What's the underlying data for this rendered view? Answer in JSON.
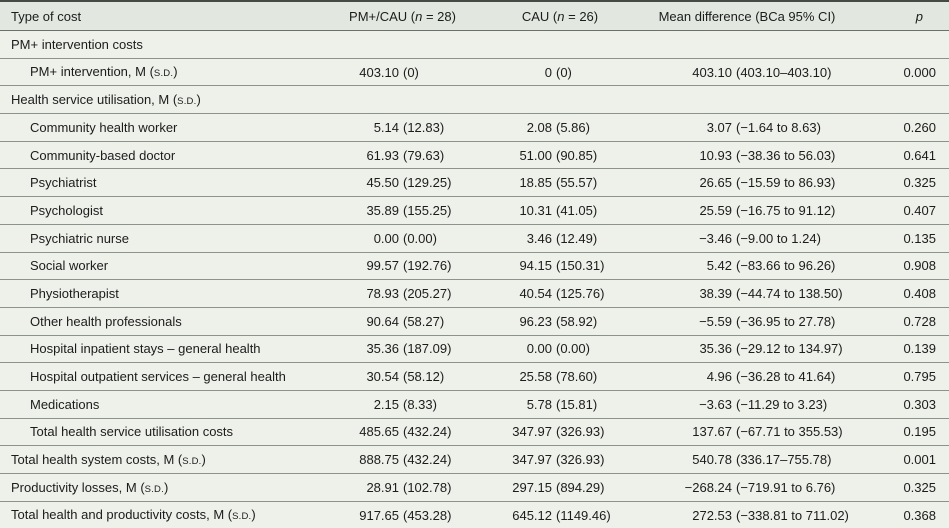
{
  "table": {
    "columns": [
      {
        "id": "type_of_cost",
        "label": "Type of cost"
      },
      {
        "id": "pm_cau",
        "label": "PM+/CAU (n = 28)"
      },
      {
        "id": "cau",
        "label": "CAU (n = 26)"
      },
      {
        "id": "mean_diff",
        "label": "Mean difference (BCa 95% CI)"
      },
      {
        "id": "p",
        "label": "p"
      }
    ],
    "rows": [
      {
        "kind": "section",
        "label": "PM+ intervention costs"
      },
      {
        "kind": "item",
        "indent": true,
        "label": "PM+ intervention, M (s.d.)",
        "pm_cau": "403.10 (0)",
        "cau": "0 (0)",
        "mean_diff": "403.10 (403.10–403.10)",
        "p": "0.000"
      },
      {
        "kind": "section",
        "label": "Health service utilisation, M (s.d.)"
      },
      {
        "kind": "item",
        "indent": true,
        "label": "Community health worker",
        "pm_cau": "5.14 (12.83)",
        "cau": "2.08 (5.86)",
        "mean_diff": "3.07 (−1.64 to 8.63)",
        "p": "0.260"
      },
      {
        "kind": "item",
        "indent": true,
        "label": "Community-based doctor",
        "pm_cau": "61.93 (79.63)",
        "cau": "51.00 (90.85)",
        "mean_diff": "10.93 (−38.36 to 56.03)",
        "p": "0.641"
      },
      {
        "kind": "item",
        "indent": true,
        "label": "Psychiatrist",
        "pm_cau": "45.50 (129.25)",
        "cau": "18.85 (55.57)",
        "mean_diff": "26.65 (−15.59 to 86.93)",
        "p": "0.325"
      },
      {
        "kind": "item",
        "indent": true,
        "label": "Psychologist",
        "pm_cau": "35.89 (155.25)",
        "cau": "10.31 (41.05)",
        "mean_diff": "25.59 (−16.75 to 91.12)",
        "p": "0.407"
      },
      {
        "kind": "item",
        "indent": true,
        "label": "Psychiatric nurse",
        "pm_cau": "0.00 (0.00)",
        "cau": "3.46 (12.49)",
        "mean_diff": "−3.46 (−9.00 to 1.24)",
        "p": "0.135"
      },
      {
        "kind": "item",
        "indent": true,
        "label": "Social worker",
        "pm_cau": "99.57 (192.76)",
        "cau": "94.15 (150.31)",
        "mean_diff": "5.42 (−83.66 to 96.26)",
        "p": "0.908"
      },
      {
        "kind": "item",
        "indent": true,
        "label": "Physiotherapist",
        "pm_cau": "78.93 (205.27)",
        "cau": "40.54 (125.76)",
        "mean_diff": "38.39 (−44.74 to 138.50)",
        "p": "0.408"
      },
      {
        "kind": "item",
        "indent": true,
        "label": "Other health professionals",
        "pm_cau": "90.64 (58.27)",
        "cau": "96.23 (58.92)",
        "mean_diff": "−5.59 (−36.95 to 27.78)",
        "p": "0.728"
      },
      {
        "kind": "item",
        "indent": true,
        "label": "Hospital inpatient stays – general health",
        "pm_cau": "35.36 (187.09)",
        "cau": "0.00 (0.00)",
        "mean_diff": "35.36 (−29.12 to 134.97)",
        "p": "0.139"
      },
      {
        "kind": "item",
        "indent": true,
        "label": "Hospital outpatient services – general health",
        "pm_cau": "30.54 (58.12)",
        "cau": "25.58 (78.60)",
        "mean_diff": "4.96 (−36.28 to 41.64)",
        "p": "0.795"
      },
      {
        "kind": "item",
        "indent": true,
        "label": "Medications",
        "pm_cau": "2.15 (8.33)",
        "cau": "5.78 (15.81)",
        "mean_diff": "−3.63 (−11.29 to 3.23)",
        "p": "0.303"
      },
      {
        "kind": "item",
        "indent": true,
        "label": "Total health service utilisation costs",
        "pm_cau": "485.65 (432.24)",
        "cau": "347.97 (326.93)",
        "mean_diff": "137.67 (−67.71 to 355.53)",
        "p": "0.195"
      },
      {
        "kind": "item",
        "indent": false,
        "label": "Total health system costs, M (s.d.)",
        "pm_cau": "888.75 (432.24)",
        "cau": "347.97 (326.93)",
        "mean_diff": "540.78 (336.17–755.78)",
        "p": "0.001"
      },
      {
        "kind": "item",
        "indent": false,
        "label": "Productivity losses, M (s.d.)",
        "pm_cau": "28.91 (102.78)",
        "cau": "297.15 (894.29)",
        "mean_diff": "−268.24 (−719.91 to 6.76)",
        "p": "0.325"
      },
      {
        "kind": "item",
        "indent": false,
        "label": "Total health and productivity costs, M (s.d.)",
        "pm_cau": "917.65 (453.28)",
        "cau": "645.12 (1149.46)",
        "mean_diff": "272.53 (−338.81 to 711.02)",
        "p": "0.368"
      }
    ],
    "colors": {
      "header_bg": "#e2e8e0",
      "row_bg": "#edf1ea",
      "rule": "#8c938b",
      "text": "#1c1c1c"
    }
  }
}
